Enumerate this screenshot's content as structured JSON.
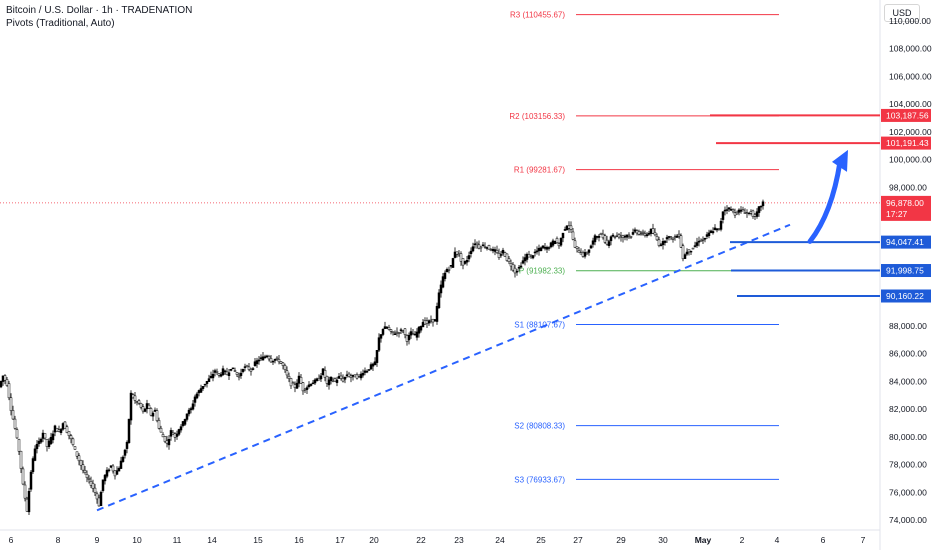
{
  "header": {
    "title": "Bitcoin / U.S. Dollar · 1h · TRADENATION",
    "indicator": "Pivots (Traditional, Auto)"
  },
  "currency_button": "USD",
  "chart_data": {
    "type": "candlestick",
    "title": "Bitcoin / U.S. Dollar · 1h · TRADENATION",
    "y_axis": {
      "ticks": [
        74000,
        76000,
        78000,
        80000,
        82000,
        84000,
        86000,
        88000,
        90000,
        92000,
        94000,
        96000,
        98000,
        100000,
        102000,
        104000,
        106000,
        108000,
        110000
      ],
      "tick_labels": [
        "74,000.00",
        "76,000.00",
        "78,000.00",
        "80,000.00",
        "82,000.00",
        "84,000.00",
        "86,000.00",
        "88,000.00",
        "90,000.00",
        "92,000.00",
        "94,000.00",
        "96,000.00",
        "98,000.00",
        "100,000.00",
        "102,000.00",
        "104,000.00",
        "106,000.00",
        "108,000.00",
        "110,000.00"
      ],
      "range": [
        73700,
        111000
      ]
    },
    "x_axis": {
      "tick_labels": [
        "6",
        "8",
        "9",
        "10",
        "11",
        "14",
        "15",
        "16",
        "17",
        "20",
        "22",
        "23",
        "24",
        "25",
        "27",
        "29",
        "30",
        "May",
        "2",
        "4",
        "6",
        "7"
      ],
      "bold_label": "May"
    },
    "candle_path": [
      [
        0,
        83600
      ],
      [
        4,
        84400
      ],
      [
        8,
        83800
      ],
      [
        12,
        82000
      ],
      [
        16,
        80600
      ],
      [
        20,
        79000
      ],
      [
        24,
        76500
      ],
      [
        28,
        74700
      ],
      [
        32,
        77500
      ],
      [
        36,
        79200
      ],
      [
        40,
        79600
      ],
      [
        44,
        80300
      ],
      [
        48,
        79300
      ],
      [
        52,
        79900
      ],
      [
        56,
        80700
      ],
      [
        60,
        80300
      ],
      [
        64,
        81000
      ],
      [
        68,
        80400
      ],
      [
        72,
        79800
      ],
      [
        76,
        79000
      ],
      [
        80,
        78300
      ],
      [
        84,
        77600
      ],
      [
        88,
        77000
      ],
      [
        92,
        76600
      ],
      [
        96,
        76000
      ],
      [
        100,
        75100
      ],
      [
        104,
        76900
      ],
      [
        108,
        77500
      ],
      [
        112,
        77900
      ],
      [
        116,
        77300
      ],
      [
        120,
        77800
      ],
      [
        124,
        78600
      ],
      [
        128,
        79500
      ],
      [
        132,
        83100
      ],
      [
        136,
        82600
      ],
      [
        140,
        82400
      ],
      [
        144,
        81800
      ],
      [
        148,
        82300
      ],
      [
        152,
        81600
      ],
      [
        156,
        81900
      ],
      [
        160,
        80600
      ],
      [
        164,
        80000
      ],
      [
        168,
        79500
      ],
      [
        172,
        80400
      ],
      [
        176,
        80000
      ],
      [
        180,
        80600
      ],
      [
        184,
        81000
      ],
      [
        188,
        81700
      ],
      [
        192,
        82000
      ],
      [
        196,
        82900
      ],
      [
        200,
        83300
      ],
      [
        204,
        83700
      ],
      [
        208,
        84000
      ],
      [
        212,
        84300
      ],
      [
        216,
        84800
      ],
      [
        220,
        84400
      ],
      [
        224,
        84800
      ],
      [
        228,
        84500
      ],
      [
        232,
        85000
      ],
      [
        236,
        84700
      ],
      [
        240,
        84300
      ],
      [
        244,
        85000
      ],
      [
        248,
        85000
      ],
      [
        252,
        84800
      ],
      [
        256,
        85300
      ],
      [
        260,
        85600
      ],
      [
        264,
        85700
      ],
      [
        268,
        85900
      ],
      [
        272,
        85500
      ],
      [
        276,
        85600
      ],
      [
        280,
        85500
      ],
      [
        284,
        85100
      ],
      [
        288,
        84400
      ],
      [
        292,
        83800
      ],
      [
        296,
        83600
      ],
      [
        300,
        84300
      ],
      [
        304,
        83400
      ],
      [
        308,
        83600
      ],
      [
        312,
        83900
      ],
      [
        316,
        84000
      ],
      [
        320,
        84200
      ],
      [
        324,
        84800
      ],
      [
        328,
        83800
      ],
      [
        332,
        84200
      ],
      [
        336,
        84000
      ],
      [
        340,
        84300
      ],
      [
        344,
        84100
      ],
      [
        348,
        84500
      ],
      [
        352,
        84300
      ],
      [
        356,
        84400
      ],
      [
        360,
        84300
      ],
      [
        364,
        84700
      ],
      [
        368,
        84800
      ],
      [
        372,
        85100
      ],
      [
        376,
        85300
      ],
      [
        380,
        87100
      ],
      [
        384,
        87800
      ],
      [
        388,
        87900
      ],
      [
        392,
        87500
      ],
      [
        396,
        87500
      ],
      [
        400,
        87600
      ],
      [
        404,
        87700
      ],
      [
        408,
        87000
      ],
      [
        412,
        87500
      ],
      [
        416,
        87300
      ],
      [
        420,
        87800
      ],
      [
        424,
        88300
      ],
      [
        428,
        88200
      ],
      [
        432,
        88400
      ],
      [
        436,
        88400
      ],
      [
        440,
        90300
      ],
      [
        444,
        91500
      ],
      [
        448,
        92100
      ],
      [
        452,
        92300
      ],
      [
        456,
        93400
      ],
      [
        460,
        93100
      ],
      [
        464,
        92400
      ],
      [
        468,
        92800
      ],
      [
        472,
        93500
      ],
      [
        476,
        94000
      ],
      [
        480,
        93700
      ],
      [
        484,
        93800
      ],
      [
        488,
        93700
      ],
      [
        492,
        93500
      ],
      [
        496,
        93400
      ],
      [
        500,
        93000
      ],
      [
        504,
        93400
      ],
      [
        508,
        92800
      ],
      [
        512,
        92400
      ],
      [
        516,
        91900
      ],
      [
        520,
        92200
      ],
      [
        524,
        92700
      ],
      [
        528,
        93100
      ],
      [
        532,
        93000
      ],
      [
        536,
        93300
      ],
      [
        540,
        93500
      ],
      [
        544,
        93700
      ],
      [
        548,
        93600
      ],
      [
        552,
        93900
      ],
      [
        556,
        94200
      ],
      [
        560,
        93800
      ],
      [
        564,
        94800
      ],
      [
        568,
        95300
      ],
      [
        572,
        94900
      ],
      [
        576,
        93600
      ],
      [
        580,
        93400
      ],
      [
        584,
        93100
      ],
      [
        588,
        93300
      ],
      [
        592,
        93800
      ],
      [
        596,
        94400
      ],
      [
        600,
        94600
      ],
      [
        604,
        94400
      ],
      [
        608,
        93900
      ],
      [
        612,
        94500
      ],
      [
        616,
        94500
      ],
      [
        620,
        94500
      ],
      [
        624,
        94400
      ],
      [
        628,
        94600
      ],
      [
        632,
        94500
      ],
      [
        636,
        94900
      ],
      [
        640,
        94700
      ],
      [
        644,
        94600
      ],
      [
        648,
        94600
      ],
      [
        652,
        94900
      ],
      [
        656,
        94500
      ],
      [
        660,
        93900
      ],
      [
        664,
        94000
      ],
      [
        668,
        94500
      ],
      [
        672,
        94300
      ],
      [
        676,
        94400
      ],
      [
        680,
        94600
      ],
      [
        684,
        92900
      ],
      [
        688,
        93400
      ],
      [
        692,
        93500
      ],
      [
        696,
        93800
      ],
      [
        700,
        94200
      ],
      [
        704,
        94200
      ],
      [
        708,
        94500
      ],
      [
        712,
        94800
      ],
      [
        716,
        95000
      ],
      [
        720,
        94900
      ],
      [
        724,
        96300
      ],
      [
        728,
        96500
      ],
      [
        732,
        96400
      ],
      [
        736,
        96100
      ],
      [
        740,
        96300
      ],
      [
        744,
        96300
      ],
      [
        748,
        96100
      ],
      [
        752,
        96200
      ],
      [
        756,
        95800
      ],
      [
        760,
        96500
      ],
      [
        764,
        96900
      ]
    ],
    "pivots": {
      "R3": 110455.67,
      "R2": 103156.33,
      "R1": 99281.67,
      "P": 91982.33,
      "S1": 88107.67,
      "S2": 80808.33,
      "S3": 76933.67,
      "labels": [
        "R3 (110455.67)",
        "R2 (103156.33)",
        "R1 (99281.67)",
        "P (91982.33)",
        "S1 (88107.67)",
        "S2 (80808.33)",
        "S3 (76933.67)"
      ],
      "colors": {
        "resistance": "#f23645",
        "pivot": "#4caf50",
        "support": "#2962ff"
      }
    },
    "resistance_levels": [
      {
        "value": 103187.56,
        "label": "103,187.56"
      },
      {
        "value": 101191.43,
        "label": "101,191.43"
      }
    ],
    "support_levels": [
      {
        "value": 94047.41,
        "label": "94,047.41"
      },
      {
        "value": 91998.75,
        "label": "91,998.75"
      },
      {
        "value": 90160.22,
        "label": "90,160.22"
      }
    ],
    "current_price": {
      "value": 96878.0,
      "label": "96,878.00",
      "countdown": "17:27"
    },
    "trendline": {
      "style": "dashed",
      "color": "#2962ff",
      "from": [
        97,
        74700
      ],
      "to": [
        790,
        95300
      ]
    },
    "arrow": {
      "color": "#2962ff",
      "direction": "up",
      "from": [
        810,
        94100
      ],
      "to": [
        848,
        100700
      ]
    },
    "colors": {
      "up": "#000000",
      "down": "#000000",
      "resistance": "#f23645",
      "support": "#1e5bd8"
    }
  }
}
